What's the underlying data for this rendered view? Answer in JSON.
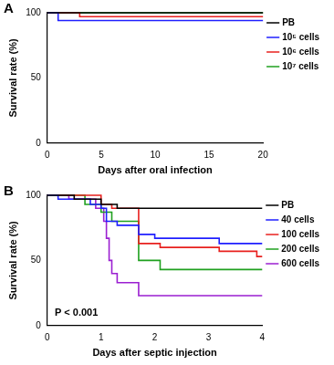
{
  "chart_data": [
    {
      "type": "line",
      "title": "A",
      "line_style": "steps",
      "grid": false,
      "legend": "right",
      "x_label": "Days after oral infection",
      "y_label": "Survival rate (%)",
      "xlim": [
        0,
        20
      ],
      "xticks": [
        0,
        5,
        10,
        15,
        20
      ],
      "ylim": [
        0,
        100
      ],
      "yticks": [
        0,
        50,
        100
      ],
      "series": [
        {
          "name": "PB",
          "color": "#000000",
          "x": [
            0,
            20
          ],
          "values": [
            100,
            100
          ]
        },
        {
          "name": "10⁵ cells",
          "color": "#1f1fff",
          "x": [
            0,
            1,
            20
          ],
          "values": [
            100,
            94,
            94
          ]
        },
        {
          "name": "10⁶ cells",
          "color": "#e8201e",
          "x": [
            0,
            3,
            20
          ],
          "values": [
            100,
            97,
            97
          ]
        },
        {
          "name": "10⁷ cells",
          "color": "#1fa01f",
          "x": [
            0,
            20
          ],
          "values": [
            100,
            100
          ]
        }
      ]
    },
    {
      "type": "line",
      "title": "B",
      "line_style": "steps",
      "grid": false,
      "legend": "right",
      "x_label": "Days after septic injection",
      "y_label": "Survival rate (%)",
      "annotations": [
        "P < 0.001"
      ],
      "xlim": [
        0,
        4
      ],
      "xticks": [
        0,
        1,
        2,
        3,
        4
      ],
      "ylim": [
        0,
        100
      ],
      "yticks": [
        0,
        50,
        100
      ],
      "series": [
        {
          "name": "PB",
          "color": "#000000",
          "x": [
            0,
            0.5,
            1.0,
            1.3,
            4
          ],
          "values": [
            100,
            97,
            93,
            90,
            90
          ]
        },
        {
          "name": "40 cells",
          "color": "#1f1fff",
          "x": [
            0,
            0.2,
            0.8,
            1.0,
            1.1,
            1.3,
            1.7,
            2.0,
            3.2,
            4
          ],
          "values": [
            100,
            97,
            93,
            90,
            80,
            77,
            70,
            67,
            63,
            63
          ]
        },
        {
          "name": "100 cells",
          "color": "#e8201e",
          "x": [
            0,
            1.0,
            1.2,
            1.7,
            2.1,
            3.2,
            3.9,
            4
          ],
          "values": [
            100,
            93,
            90,
            63,
            60,
            57,
            53,
            53
          ]
        },
        {
          "name": "200 cells",
          "color": "#1fa01f",
          "x": [
            0,
            0.7,
            1.0,
            1.2,
            1.7,
            2.1,
            4
          ],
          "values": [
            100,
            93,
            87,
            80,
            50,
            43,
            43
          ]
        },
        {
          "name": "600 cells",
          "color": "#9b1fd1",
          "x": [
            0,
            0.4,
            0.9,
            1.05,
            1.1,
            1.15,
            1.2,
            1.3,
            1.7,
            4
          ],
          "values": [
            100,
            97,
            90,
            80,
            67,
            50,
            40,
            33,
            23,
            23
          ]
        }
      ]
    }
  ]
}
